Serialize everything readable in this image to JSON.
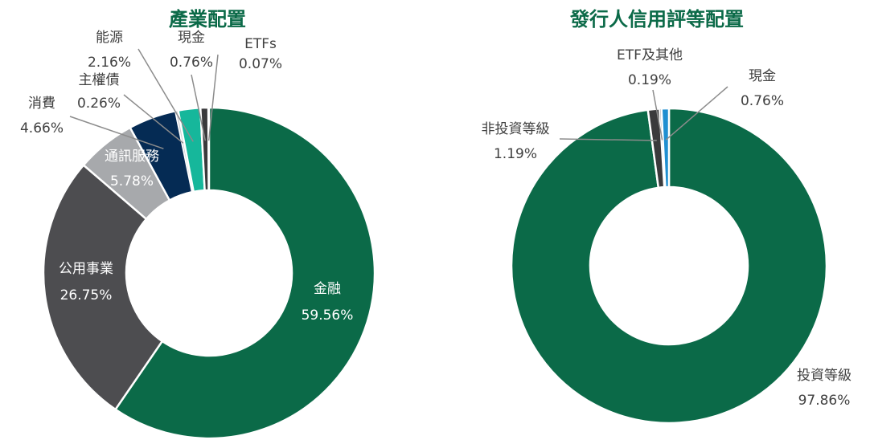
{
  "colors": {
    "title": "#0b6a48",
    "label_dark": "#404040",
    "label_light": "#ffffff",
    "leader": "#8c8c8c",
    "separator": "#ffffff"
  },
  "chart_data": [
    {
      "type": "pie",
      "donut": true,
      "title": "產業配置",
      "start_angle_deg": 0,
      "direction": "clockwise",
      "slices": [
        {
          "label": "金融",
          "value": 59.56,
          "value_label": "59.56%",
          "color": "#0b6a48",
          "label_style": "inside-light"
        },
        {
          "label": "公用事業",
          "value": 26.75,
          "value_label": "26.75%",
          "color": "#4d4d50",
          "label_style": "inside-light"
        },
        {
          "label": "通訊服務",
          "value": 5.78,
          "value_label": "5.78%",
          "color": "#a7a9ac",
          "label_style": "inside-light"
        },
        {
          "label": "消費",
          "value": 4.66,
          "value_label": "4.66%",
          "color": "#052b54",
          "label_style": "outside"
        },
        {
          "label": "主權債",
          "value": 0.26,
          "value_label": "0.26%",
          "color": "#cfd0d2",
          "label_style": "outside"
        },
        {
          "label": "能源",
          "value": 2.16,
          "value_label": "2.16%",
          "color": "#16b79b",
          "label_style": "outside"
        },
        {
          "label": "現金",
          "value": 0.76,
          "value_label": "0.76%",
          "color": "#3a3a3c",
          "label_style": "outside"
        },
        {
          "label": "ETFs",
          "value": 0.07,
          "value_label": "0.07%",
          "color": "#0b6a48",
          "label_style": "outside"
        }
      ]
    },
    {
      "type": "pie",
      "donut": true,
      "title": "發行人信用評等配置",
      "start_angle_deg": 0,
      "direction": "clockwise",
      "slices": [
        {
          "label": "投資等級",
          "value": 97.86,
          "value_label": "97.86%",
          "color": "#0b6a48",
          "label_style": "outside"
        },
        {
          "label": "非投資等級",
          "value": 1.19,
          "value_label": "1.19%",
          "color": "#3a3a3c",
          "label_style": "outside"
        },
        {
          "label": "ETF及其他",
          "value": 0.19,
          "value_label": "0.19%",
          "color": "#a7a9ac",
          "label_style": "outside"
        },
        {
          "label": "現金",
          "value": 0.76,
          "value_label": "0.76%",
          "color": "#1f8fd1",
          "label_style": "outside"
        }
      ]
    }
  ]
}
